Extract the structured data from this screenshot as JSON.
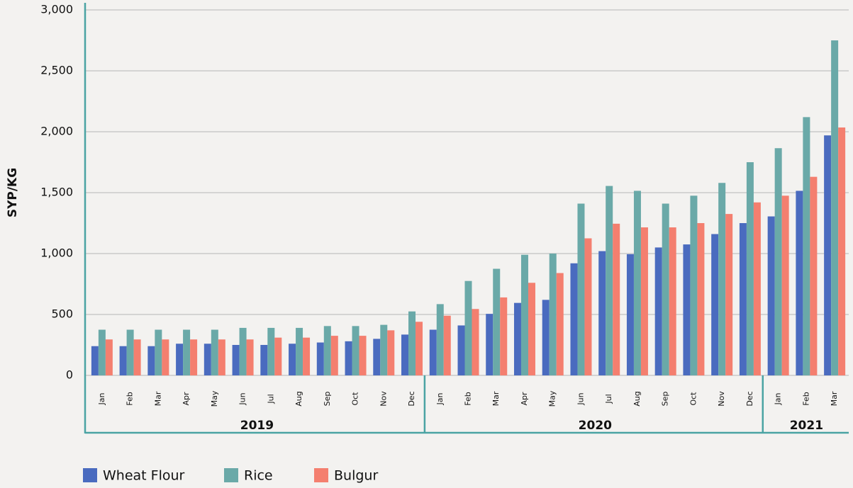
{
  "chart_data": {
    "type": "bar",
    "y_label": "SYP/KG",
    "category_groups": [
      {
        "label": "2019",
        "categories": [
          "Jan",
          "Feb",
          "Mar",
          "Apr",
          "May",
          "Jun",
          "Jul",
          "Aug",
          "Sep",
          "Oct",
          "Nov",
          "Dec"
        ]
      },
      {
        "label": "2020",
        "categories": [
          "Jan",
          "Feb",
          "Mar",
          "Apr",
          "May",
          "Jun",
          "Jul",
          "Aug",
          "Sep",
          "Oct",
          "Nov",
          "Dec"
        ]
      },
      {
        "label": "2021",
        "categories": [
          "Jan",
          "Feb",
          "Mar"
        ]
      }
    ],
    "series": [
      {
        "name": "Wheat Flour",
        "color": "#4a6bbf",
        "values": [
          240,
          240,
          240,
          260,
          260,
          250,
          250,
          260,
          270,
          280,
          300,
          335,
          375,
          410,
          505,
          595,
          620,
          920,
          1020,
          995,
          1050,
          1075,
          1160,
          1250,
          1305,
          1515,
          1970
        ]
      },
      {
        "name": "Rice",
        "color": "#6aa9a8",
        "values": [
          375,
          375,
          375,
          375,
          375,
          390,
          390,
          390,
          405,
          405,
          415,
          525,
          585,
          775,
          875,
          990,
          1000,
          1410,
          1555,
          1515,
          1410,
          1475,
          1580,
          1750,
          1865,
          2120,
          2750
        ]
      },
      {
        "name": "Bulgur",
        "color": "#f47f6f",
        "values": [
          295,
          295,
          295,
          295,
          295,
          295,
          310,
          310,
          325,
          325,
          370,
          440,
          490,
          545,
          640,
          760,
          840,
          1125,
          1245,
          1215,
          1215,
          1250,
          1325,
          1420,
          1475,
          1630,
          2035
        ]
      }
    ],
    "ylim": [
      0,
      3000
    ],
    "yticks": [
      0,
      500,
      {
        "value": 1000,
        "label": "1,000"
      },
      {
        "value": 1500,
        "label": "1,500"
      },
      {
        "value": 2000,
        "label": "2,000"
      },
      {
        "value": 2500,
        "label": "2,500"
      },
      {
        "value": 3000,
        "label": "3,000"
      }
    ],
    "grid": true
  }
}
